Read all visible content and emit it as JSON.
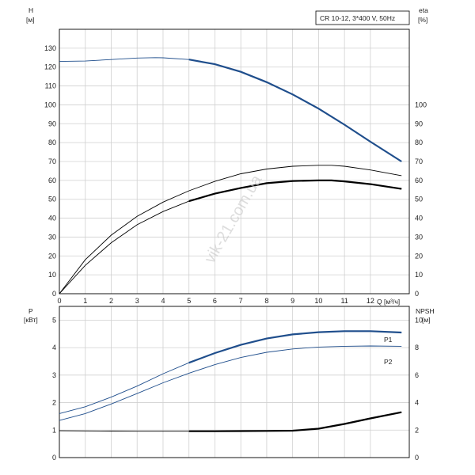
{
  "chart_data": [
    {
      "type": "line",
      "title": "CR 10-12, 3*400 V, 50Hz",
      "y_left_label": "H",
      "y_left_unit": "[м]",
      "y_right_label": "eta",
      "y_right_unit": "[%]",
      "xlabel": "Q [м³/ч]",
      "xlim": [
        0,
        13.5
      ],
      "ylim_left": [
        0,
        140
      ],
      "ylim_right": [
        0,
        140
      ],
      "x_ticks": [
        0,
        1,
        2,
        3,
        4,
        5,
        6,
        7,
        8,
        9,
        10,
        11,
        12
      ],
      "y_left_ticks": [
        0,
        10,
        20,
        30,
        40,
        50,
        60,
        70,
        80,
        90,
        100,
        110,
        120,
        130
      ],
      "y_right_ticks": [
        0,
        10,
        20,
        30,
        40,
        50,
        60,
        70,
        80,
        90,
        100
      ],
      "grid": true,
      "series": [
        {
          "color": "#1f4e8c",
          "x": [
            0,
            1,
            2,
            3,
            3.7,
            4,
            5,
            6,
            7,
            8,
            9,
            10,
            11,
            12,
            13.2
          ],
          "values": [
            123,
            123.2,
            124,
            124.8,
            125,
            124.9,
            124,
            121.5,
            117.5,
            112,
            105.5,
            98,
            89.5,
            80.5,
            70
          ],
          "highlight_from": 5
        },
        {
          "color": "#000000",
          "x": [
            0,
            1,
            2,
            3,
            4,
            5,
            6,
            7,
            8,
            9,
            10,
            10.5,
            11,
            12,
            13.2
          ],
          "values": [
            0,
            18,
            31,
            41,
            48.5,
            54.5,
            59.5,
            63.5,
            66,
            67.5,
            68,
            68,
            67.5,
            65.5,
            62.5
          ],
          "highlight_from": 99
        },
        {
          "color": "#000000",
          "x": [
            0,
            1,
            2,
            3,
            4,
            5,
            6,
            7,
            8,
            9,
            10,
            10.5,
            11,
            12,
            13.2
          ],
          "values": [
            0,
            15,
            27,
            36.5,
            43.5,
            49,
            53,
            56,
            58.5,
            59.7,
            60,
            60,
            59.5,
            58,
            55.5
          ],
          "highlight_from": 5
        }
      ]
    },
    {
      "type": "line",
      "y_left_label": "P",
      "y_left_unit": "[кВт]",
      "y_right_label": "NPSH",
      "y_right_unit": "[м]",
      "xlim": [
        0,
        13.5
      ],
      "ylim_left": [
        0,
        5.5
      ],
      "ylim_right": [
        0,
        11
      ],
      "y_left_ticks": [
        0,
        1,
        2,
        3,
        4,
        5
      ],
      "y_right_ticks": [
        0,
        2,
        4,
        6,
        8,
        10
      ],
      "grid": true,
      "series": [
        {
          "name": "P1",
          "color": "#1f4e8c",
          "x": [
            0,
            1,
            2,
            3,
            4,
            5,
            6,
            7,
            8,
            9,
            10,
            11,
            12,
            13.2
          ],
          "values": [
            1.6,
            1.85,
            2.2,
            2.6,
            3.05,
            3.45,
            3.8,
            4.1,
            4.33,
            4.48,
            4.56,
            4.6,
            4.6,
            4.55
          ],
          "highlight_from": 5
        },
        {
          "name": "P2",
          "color": "#1f4e8c",
          "x": [
            0,
            1,
            2,
            3,
            4,
            5,
            6,
            7,
            8,
            9,
            10,
            11,
            12,
            13.2
          ],
          "values": [
            1.35,
            1.6,
            1.95,
            2.33,
            2.72,
            3.07,
            3.38,
            3.64,
            3.83,
            3.95,
            4.02,
            4.05,
            4.06,
            4.05
          ],
          "highlight_from": 99
        },
        {
          "name": "",
          "axis": "right",
          "color": "#000000",
          "x": [
            0,
            1,
            2,
            3,
            4,
            5,
            6,
            7,
            8,
            9,
            10,
            11,
            12,
            13.2
          ],
          "values": [
            1.95,
            1.94,
            1.93,
            1.92,
            1.92,
            1.92,
            1.92,
            1.93,
            1.94,
            1.96,
            2.1,
            2.45,
            2.85,
            3.3
          ],
          "highlight_from": 5
        }
      ]
    }
  ],
  "watermark": "vik-21.com.ua",
  "label_p1": "P1",
  "label_p2": "P2"
}
